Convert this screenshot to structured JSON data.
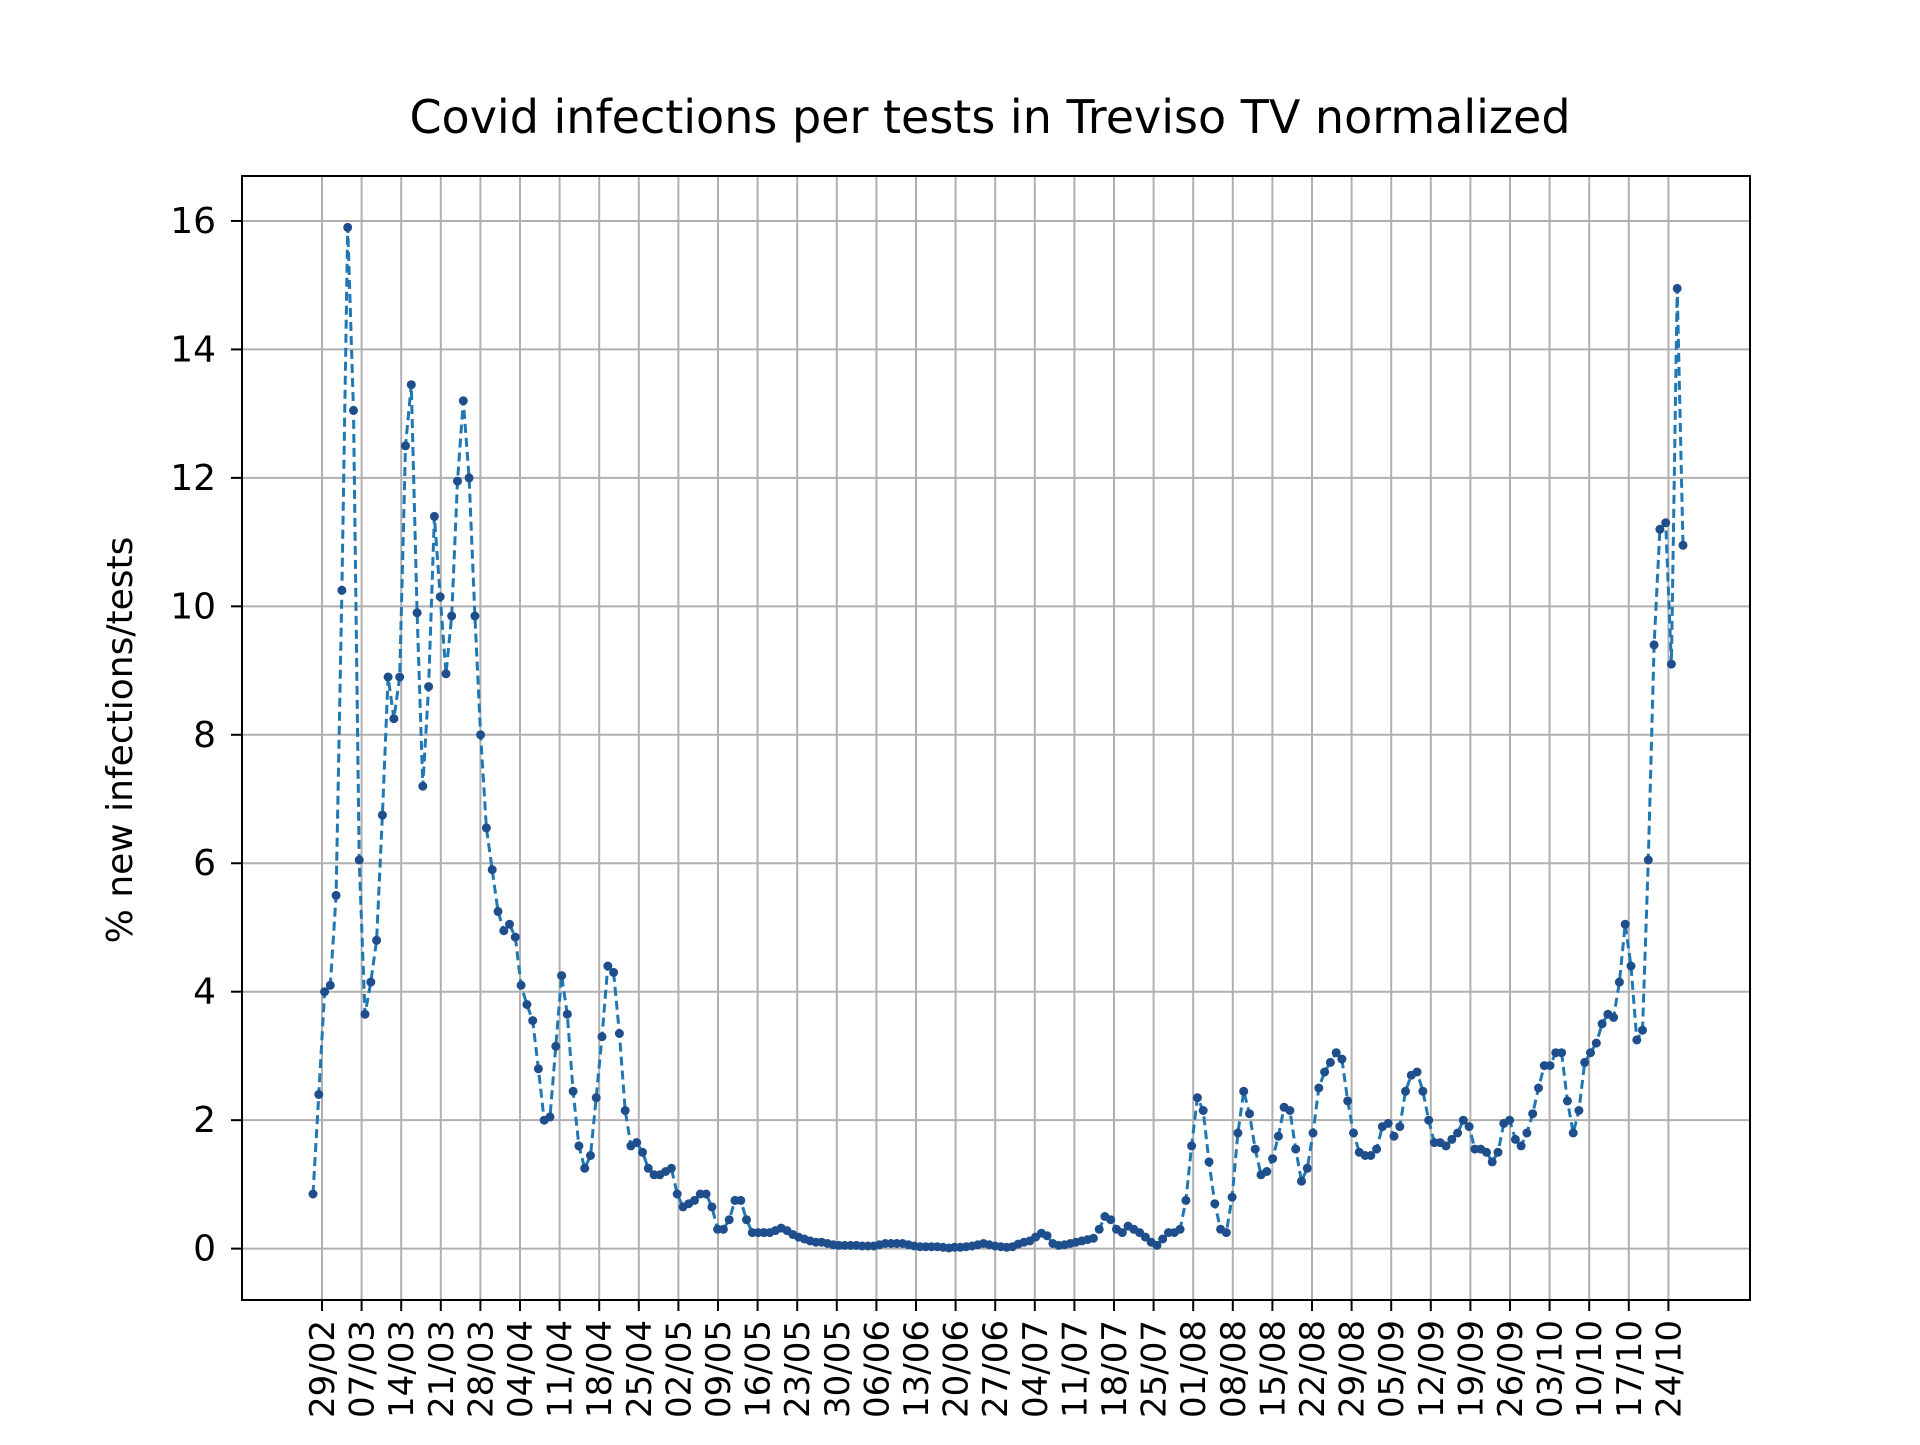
{
  "chart_data": {
    "type": "line",
    "title": "Covid infections per tests in Treviso TV normalized",
    "xlabel": "",
    "ylabel": "% new infections/tests",
    "ylim": [
      -0.8,
      16.7
    ],
    "yticks": [
      0,
      2,
      4,
      6,
      8,
      10,
      12,
      14,
      16
    ],
    "grid": true,
    "legend": "none",
    "line_style": "dashed",
    "marker": "dot",
    "colors": {
      "line": "#1f77b4",
      "marker": "#1f4e8c",
      "grid": "#b0b0b0",
      "axes": "#000000"
    },
    "xtick_labels": [
      "29/02",
      "07/03",
      "14/03",
      "21/03",
      "28/03",
      "04/04",
      "11/04",
      "18/04",
      "25/04",
      "02/05",
      "09/05",
      "16/05",
      "23/05",
      "30/05",
      "06/06",
      "13/06",
      "20/06",
      "27/06",
      "04/07",
      "11/07",
      "18/07",
      "25/07",
      "01/08",
      "08/08",
      "15/08",
      "22/08",
      "29/08",
      "05/09",
      "12/09",
      "19/09",
      "26/09",
      "03/10",
      "10/10",
      "17/10",
      "24/10"
    ],
    "series": [
      {
        "values": [
          0.85,
          2.4,
          4.0,
          4.1,
          5.5,
          10.25,
          15.9,
          13.05,
          6.05,
          3.65,
          4.15,
          4.8,
          6.75,
          8.9,
          8.25,
          8.9,
          12.5,
          13.45,
          9.9,
          7.2,
          8.75,
          11.4,
          10.15,
          8.95,
          9.85,
          11.95,
          13.2,
          12.0,
          9.85,
          8.0,
          6.55,
          5.9,
          5.25,
          4.95,
          5.05,
          4.85,
          4.1,
          3.8,
          3.55,
          2.8,
          2.0,
          2.05,
          3.15,
          4.25,
          3.65,
          2.45,
          1.6,
          1.25,
          1.45,
          2.35,
          3.3,
          4.4,
          4.3,
          3.35,
          2.15,
          1.6,
          1.65,
          1.5,
          1.25,
          1.15,
          1.15,
          1.2,
          1.25,
          0.85,
          0.65,
          0.7,
          0.75,
          0.85,
          0.85,
          0.65,
          0.3,
          0.3,
          0.45,
          0.75,
          0.75,
          0.45,
          0.25,
          0.25,
          0.25,
          0.25,
          0.28,
          0.32,
          0.28,
          0.22,
          0.18,
          0.15,
          0.12,
          0.1,
          0.1,
          0.08,
          0.06,
          0.05,
          0.05,
          0.05,
          0.05,
          0.04,
          0.04,
          0.04,
          0.06,
          0.08,
          0.08,
          0.08,
          0.08,
          0.06,
          0.04,
          0.03,
          0.03,
          0.03,
          0.03,
          0.02,
          0.01,
          0.02,
          0.02,
          0.03,
          0.04,
          0.06,
          0.08,
          0.06,
          0.04,
          0.03,
          0.02,
          0.03,
          0.07,
          0.1,
          0.12,
          0.18,
          0.24,
          0.2,
          0.08,
          0.05,
          0.06,
          0.08,
          0.1,
          0.12,
          0.14,
          0.16,
          0.3,
          0.5,
          0.45,
          0.3,
          0.25,
          0.35,
          0.3,
          0.25,
          0.18,
          0.1,
          0.05,
          0.15,
          0.25,
          0.25,
          0.3,
          0.75,
          1.6,
          2.35,
          2.15,
          1.35,
          0.7,
          0.3,
          0.25,
          0.8,
          1.8,
          2.45,
          2.1,
          1.55,
          1.15,
          1.2,
          1.4,
          1.75,
          2.2,
          2.15,
          1.55,
          1.05,
          1.25,
          1.8,
          2.5,
          2.75,
          2.9,
          3.05,
          2.95,
          2.3,
          1.8,
          1.5,
          1.45,
          1.45,
          1.55,
          1.9,
          1.95,
          1.75,
          1.9,
          2.45,
          2.7,
          2.75,
          2.45,
          2.0,
          1.65,
          1.65,
          1.6,
          1.7,
          1.8,
          2.0,
          1.9,
          1.55,
          1.55,
          1.5,
          1.35,
          1.5,
          1.95,
          2.0,
          1.7,
          1.6,
          1.8,
          2.1,
          2.5,
          2.85,
          2.85,
          3.05,
          3.05,
          2.3,
          1.8,
          2.15,
          2.9,
          3.05,
          3.2,
          3.5,
          3.65,
          3.6,
          4.15,
          5.05,
          4.4,
          3.25,
          3.4,
          6.05,
          9.4,
          11.2,
          11.3,
          9.1,
          14.95,
          10.95
        ]
      }
    ]
  }
}
